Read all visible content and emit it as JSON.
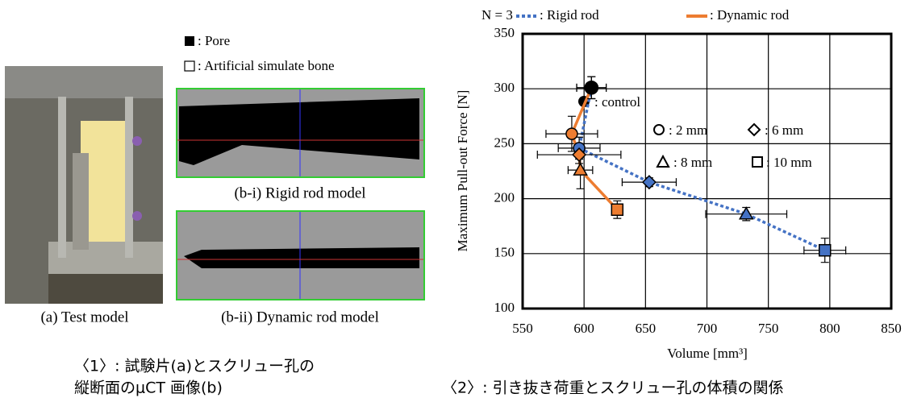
{
  "figure": {
    "pore_legend": ": Pore",
    "bone_legend": ": Artificial simulate bone",
    "caption_a": "(a) Test model",
    "caption_bi": "(b-i) Rigid rod model",
    "caption_bii": "(b-ii) Dynamic rod model",
    "caption_1_line1": "〈1〉: 試験片(a)とスクリュー孔の",
    "caption_1_line2": "縦断面のμCT 画像(b)",
    "caption_2": "〈2〉: 引き抜き荷重とスクリュー孔の体積の関係"
  },
  "chart_data": {
    "type": "scatter",
    "sample_note": "N = 3",
    "x_label": "Volume [mm³]",
    "y_label": "Maximum Pull-out Force [N]",
    "xlim": [
      550,
      850
    ],
    "xticks": [
      550,
      600,
      650,
      700,
      750,
      800,
      850
    ],
    "ylim": [
      100,
      350
    ],
    "yticks": [
      100,
      150,
      200,
      250,
      300,
      350
    ],
    "grid": true,
    "marker_legend": [
      ": control",
      ": 2 mm",
      ": 6 mm",
      ": 8 mm",
      ": 10 mm"
    ],
    "series": [
      {
        "name": ": Rigid rod",
        "color": "#4472c4",
        "line_style": "dotted",
        "markers": [
          "control",
          "circle",
          "diamond",
          "triangle",
          "square"
        ],
        "x": [
          606,
          596,
          653,
          732,
          796
        ],
        "values": [
          301,
          246,
          215,
          186,
          153
        ],
        "x_err": [
          12,
          17,
          22,
          33,
          17
        ],
        "y_err": [
          10,
          10,
          4,
          6,
          11
        ]
      },
      {
        "name": ": Dynamic rod",
        "color": "#ed7d31",
        "line_style": "solid",
        "markers": [
          "control",
          "circle",
          "diamond",
          "triangle",
          "square"
        ],
        "x": [
          606,
          590,
          596,
          597,
          627
        ],
        "values": [
          301,
          259,
          240,
          226,
          190
        ],
        "x_err": [
          12,
          21,
          34,
          10,
          4
        ],
        "y_err": [
          10,
          16,
          8,
          17,
          8
        ]
      }
    ]
  }
}
